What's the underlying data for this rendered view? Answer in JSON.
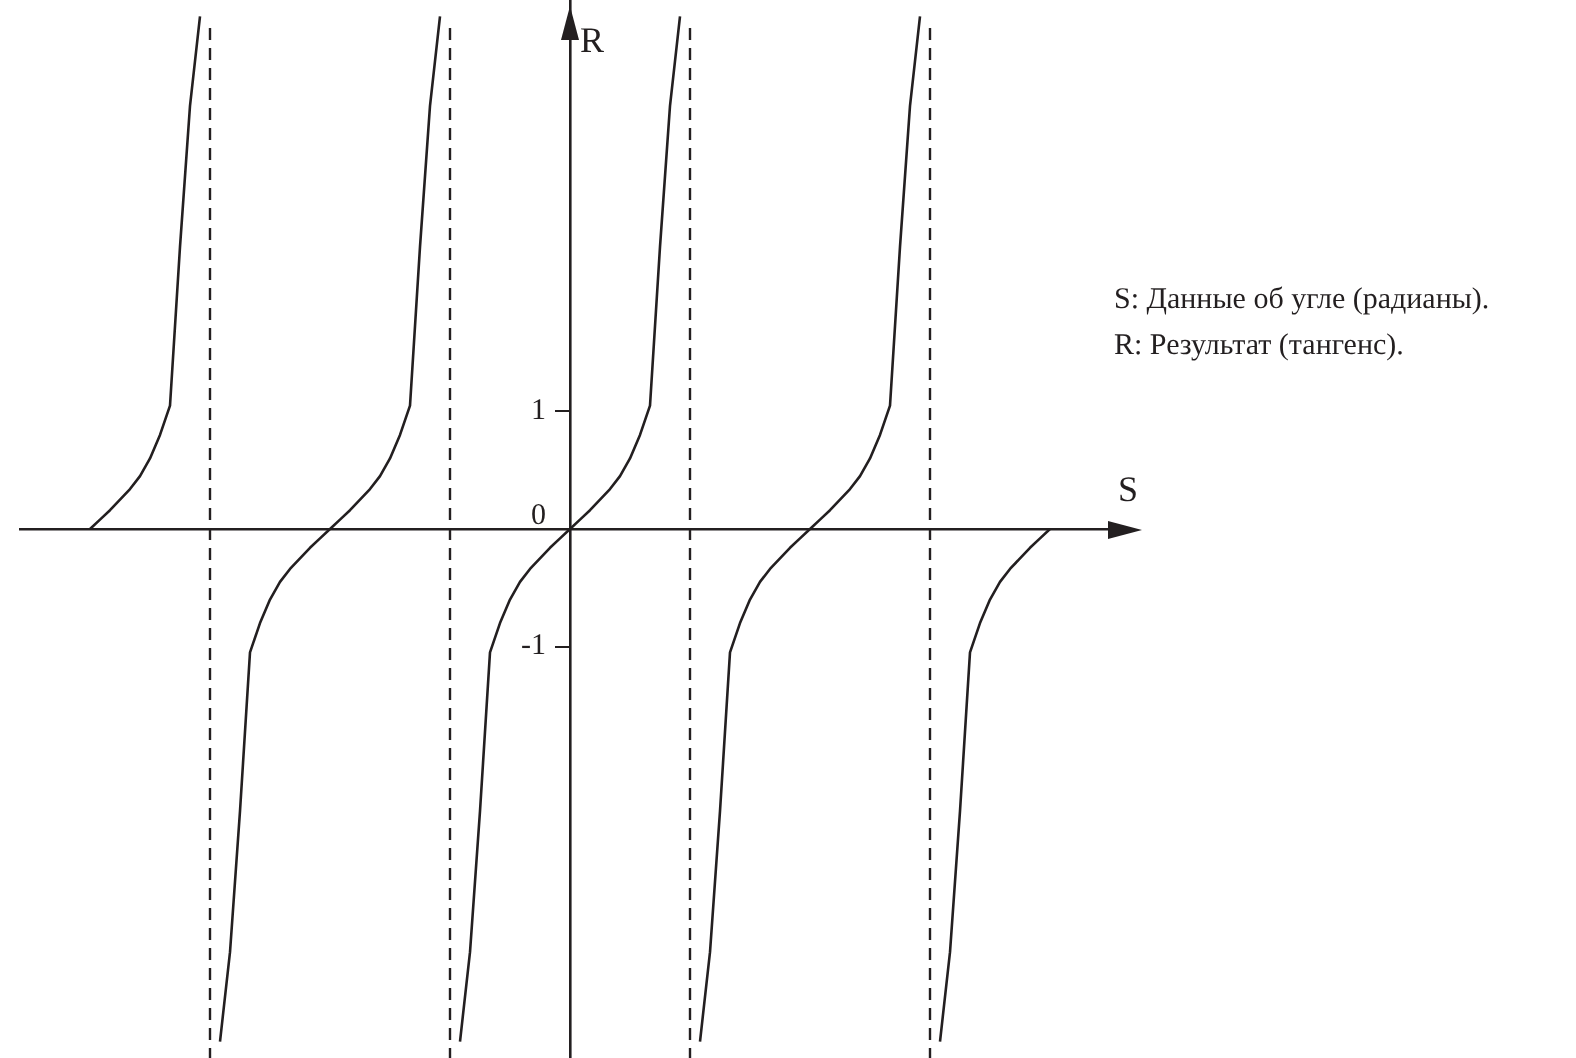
{
  "chart_data": {
    "type": "line",
    "xlabel": "S",
    "ylabel": "R",
    "ylim": [
      -4.5,
      4.5
    ],
    "yticks": [
      {
        "value": -1,
        "label": "-1"
      },
      0,
      1
    ],
    "tick_labels": "y",
    "marker": "none",
    "line_style": "solid",
    "categories": [
      null,
      null,
      null,
      null,
      null,
      null,
      null,
      null,
      null,
      null,
      null,
      null,
      null,
      null,
      null,
      null,
      null,
      null,
      null,
      null,
      null,
      null,
      null,
      null,
      null,
      null,
      null,
      null,
      null,
      null,
      null,
      null,
      null,
      null,
      null,
      null,
      null,
      null,
      null,
      null,
      null,
      null,
      null,
      null,
      null,
      null,
      null,
      null,
      null,
      null,
      null,
      null,
      null,
      null,
      null,
      null,
      null,
      null,
      null,
      null,
      null,
      null,
      null,
      null,
      null,
      null,
      null,
      null,
      null,
      null,
      null,
      null,
      null,
      null,
      null,
      null,
      null,
      null,
      null,
      null,
      null,
      null,
      null,
      null,
      null,
      null,
      null,
      null,
      null,
      null,
      null,
      null,
      null,
      null,
      null,
      null,
      null,
      null,
      null,
      null,
      null,
      null,
      null,
      null,
      null,
      null,
      null,
      null,
      null,
      null,
      null
    ],
    "series": [
      {
        "color": "#231f20",
        "values": [
          null,
          null,
          null,
          null,
          null,
          null,
          null,
          0,
          0.08,
          0.16,
          0.25,
          0.34,
          0.45,
          0.6,
          0.8,
          1.05,
          2.4,
          3.6,
          4.36,
          null,
          -4.36,
          -3.6,
          -2.4,
          -1.05,
          -0.8,
          -0.6,
          -0.45,
          -0.34,
          -0.25,
          -0.16,
          -0.08,
          0,
          0.08,
          0.16,
          0.25,
          0.34,
          0.45,
          0.6,
          0.8,
          1.05,
          2.4,
          3.6,
          4.36,
          null,
          -4.36,
          -3.6,
          -2.4,
          -1.05,
          -0.8,
          -0.6,
          -0.45,
          -0.34,
          -0.25,
          -0.16,
          -0.08,
          0,
          0.08,
          0.16,
          0.25,
          0.34,
          0.45,
          0.6,
          0.8,
          1.05,
          2.4,
          3.6,
          4.36,
          null,
          -4.36,
          -3.6,
          -2.4,
          -1.05,
          -0.8,
          -0.6,
          -0.45,
          -0.34,
          -0.25,
          -0.16,
          -0.08,
          0,
          0.08,
          0.16,
          0.25,
          0.34,
          0.45,
          0.6,
          0.8,
          1.05,
          2.4,
          3.6,
          4.36,
          null,
          -4.36,
          -3.6,
          -2.4,
          -1.05,
          -0.8,
          -0.6,
          -0.45,
          -0.34,
          -0.25,
          -0.16,
          -0.08,
          0,
          null,
          null,
          null,
          null,
          null,
          null,
          null
        ]
      }
    ],
    "ref_lines": [
      {
        "axis": "x",
        "color": "#231f20",
        "line_style": "dashed"
      },
      {
        "axis": "x",
        "color": "#231f20",
        "line_style": "dashed"
      },
      {
        "axis": "x",
        "color": "#231f20",
        "line_style": "dashed"
      },
      {
        "axis": "x",
        "color": "#231f20",
        "line_style": "dashed"
      }
    ],
    "annotations": [
      "S: Данные об угле (радианы).",
      "R: Результат (тангенс)."
    ]
  }
}
